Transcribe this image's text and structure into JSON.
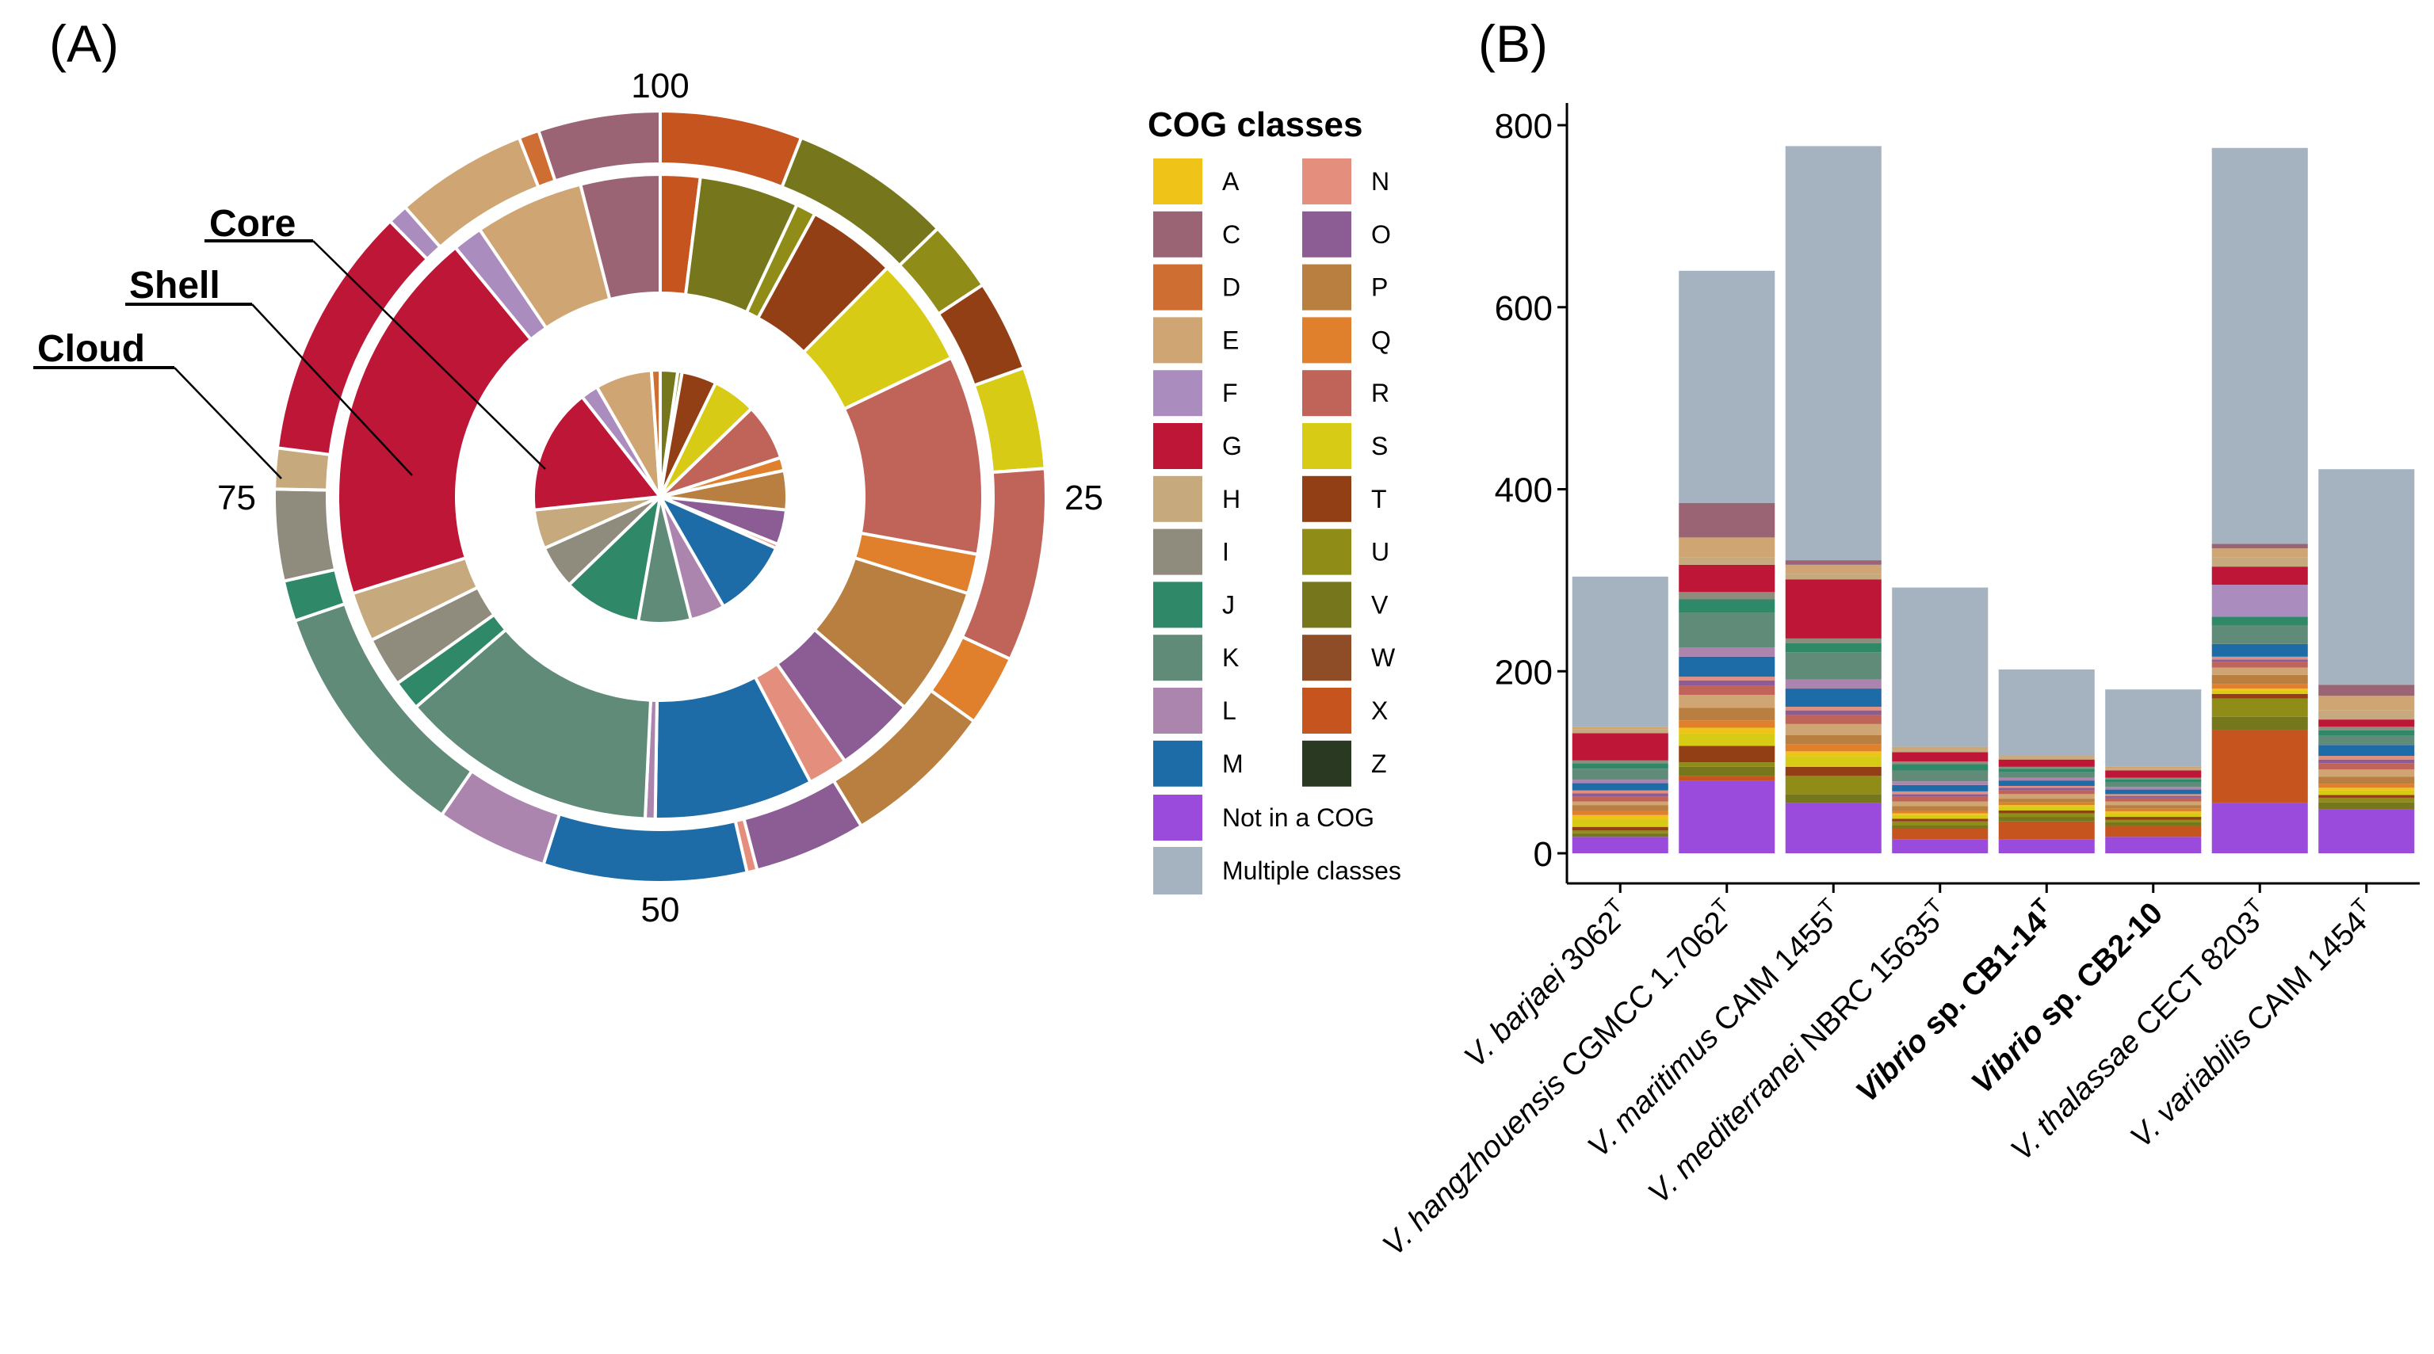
{
  "colors": {
    "A": "#F0C319",
    "C": "#9A6474",
    "D": "#CE6E33",
    "E": "#D0A574",
    "F": "#AB8CBF",
    "G": "#BE1637",
    "H": "#C6A97C",
    "I": "#8F8B7D",
    "J": "#2F8867",
    "K": "#5F8B78",
    "L": "#AC85AE",
    "M": "#1E6CA7",
    "N": "#E48F7E",
    "O": "#8B5D94",
    "P": "#B97F40",
    "Q": "#E07F2C",
    "R": "#C0645A",
    "S": "#D8CB16",
    "T": "#933F16",
    "U": "#8F8C18",
    "V": "#76761C",
    "W": "#8E4D26",
    "X": "#C5541F",
    "Z": "#2A3A22",
    "NotCOG": "#9A4BDB",
    "Multiple": "#A5B2BF"
  },
  "chart_data": [
    {
      "type": "pie",
      "panel_label": "(A)",
      "variant": "nested donut (percent of genes per pangenome fraction)",
      "tick_labels": [
        {
          "value": "100",
          "angle": 0
        },
        {
          "value": "25",
          "angle": 90
        },
        {
          "value": "50",
          "angle": 180
        },
        {
          "value": "75",
          "angle": 270
        }
      ],
      "ring_labels": {
        "core": "Core",
        "shell": "Shell",
        "cloud": "Cloud"
      },
      "rings": {
        "outer": [
          [
            "X",
            7
          ],
          [
            "V",
            8
          ],
          [
            "U",
            3.5
          ],
          [
            "T",
            4.5
          ],
          [
            "S",
            5
          ],
          [
            "R",
            9.5
          ],
          [
            "Q",
            3.5
          ],
          [
            "P",
            7.5
          ],
          [
            "O",
            5.5
          ],
          [
            "N",
            0.5
          ],
          [
            "M",
            10
          ],
          [
            "L",
            5.5
          ],
          [
            "K",
            12
          ],
          [
            "J",
            2
          ],
          [
            "I",
            4.5
          ],
          [
            "H",
            2
          ],
          [
            "G",
            12.5
          ],
          [
            "F",
            1
          ],
          [
            "E",
            6.5
          ],
          [
            "D",
            1
          ],
          [
            "C",
            6
          ]
        ],
        "middle": [
          [
            "X",
            2
          ],
          [
            "V",
            5
          ],
          [
            "U",
            1
          ],
          [
            "T",
            4.5
          ],
          [
            "S",
            5.5
          ],
          [
            "R",
            10
          ],
          [
            "Q",
            2
          ],
          [
            "P",
            6.5
          ],
          [
            "O",
            4
          ],
          [
            "N",
            2
          ],
          [
            "M",
            8
          ],
          [
            "L",
            0.5
          ],
          [
            "K",
            13
          ],
          [
            "J",
            1.5
          ],
          [
            "I",
            2.5
          ],
          [
            "H",
            2.5
          ],
          [
            "G",
            19
          ],
          [
            "F",
            1.5
          ],
          [
            "E",
            5.5
          ],
          [
            "C",
            4
          ]
        ],
        "inner": [
          [
            "V",
            2
          ],
          [
            "U",
            0.5
          ],
          [
            "T",
            4
          ],
          [
            "S",
            5
          ],
          [
            "R",
            6.5
          ],
          [
            "Q",
            1.5
          ],
          [
            "P",
            4.5
          ],
          [
            "O",
            4
          ],
          [
            "N",
            0.5
          ],
          [
            "M",
            9
          ],
          [
            "L",
            4
          ],
          [
            "K",
            6
          ],
          [
            "J",
            9
          ],
          [
            "I",
            5
          ],
          [
            "H",
            4.5
          ],
          [
            "G",
            14.5
          ],
          [
            "F",
            2
          ],
          [
            "E",
            6.5
          ],
          [
            "D",
            1
          ]
        ]
      }
    },
    {
      "type": "bar",
      "stacked": true,
      "panel_label": "(B)",
      "ylim": [
        0,
        800
      ],
      "yticks": [
        0,
        200,
        400,
        600,
        800
      ],
      "categories": [
        {
          "label": "V. barjaei 3062",
          "sup": "T"
        },
        {
          "label": "V. hangzhouensis CGMCC 1.7062",
          "sup": "T"
        },
        {
          "label": "V. maritimus CAIM 1455",
          "sup": "T"
        },
        {
          "label": "V. mediterranei NBRC 15635",
          "sup": "T"
        },
        {
          "label": "Vibrio sp. CB1-14",
          "sup": "T"
        },
        {
          "label": "Vibrio sp. CB2-10",
          "sup": ""
        },
        {
          "label": "V. thalassae CECT 8203",
          "sup": "T"
        },
        {
          "label": "V. variabilis CAIM 1454",
          "sup": "T"
        }
      ],
      "series": [
        {
          "name": "Not in a COG",
          "values": [
            18,
            80,
            55,
            15,
            15,
            18,
            55,
            48
          ]
        },
        {
          "name": "X",
          "values": [
            0,
            5,
            0,
            12,
            20,
            12,
            80,
            0
          ]
        },
        {
          "name": "V",
          "values": [
            4,
            10,
            10,
            4,
            5,
            4,
            15,
            8
          ]
        },
        {
          "name": "U",
          "values": [
            3,
            5,
            20,
            4,
            4,
            3,
            20,
            5
          ]
        },
        {
          "name": "T",
          "values": [
            4,
            18,
            10,
            3,
            3,
            3,
            5,
            3
          ]
        },
        {
          "name": "S",
          "values": [
            8,
            14,
            12,
            4,
            4,
            4,
            4,
            5
          ]
        },
        {
          "name": "A",
          "values": [
            5,
            6,
            5,
            2,
            2,
            2,
            2,
            3
          ]
        },
        {
          "name": "Q",
          "values": [
            5,
            8,
            8,
            3,
            3,
            3,
            5,
            4
          ]
        },
        {
          "name": "P",
          "values": [
            6,
            14,
            10,
            5,
            4,
            4,
            10,
            8
          ]
        },
        {
          "name": "E",
          "values": [
            4,
            14,
            12,
            5,
            5,
            4,
            8,
            8
          ]
        },
        {
          "name": "R",
          "values": [
            5,
            10,
            10,
            5,
            4,
            4,
            6,
            7
          ]
        },
        {
          "name": "O",
          "values": [
            4,
            6,
            5,
            3,
            3,
            2,
            3,
            4
          ]
        },
        {
          "name": "N",
          "values": [
            3,
            4,
            4,
            3,
            2,
            2,
            3,
            4
          ]
        },
        {
          "name": "M",
          "values": [
            8,
            22,
            20,
            7,
            6,
            5,
            14,
            12
          ]
        },
        {
          "name": "L",
          "values": [
            4,
            10,
            10,
            4,
            3,
            3,
            0,
            0
          ]
        },
        {
          "name": "K",
          "values": [
            12,
            38,
            30,
            12,
            6,
            5,
            20,
            10
          ]
        },
        {
          "name": "J",
          "values": [
            6,
            15,
            10,
            7,
            4,
            3,
            10,
            6
          ]
        },
        {
          "name": "I",
          "values": [
            3,
            8,
            5,
            3,
            2,
            2,
            0,
            4
          ]
        },
        {
          "name": "F",
          "values": [
            0,
            0,
            0,
            0,
            0,
            0,
            35,
            0
          ]
        },
        {
          "name": "G",
          "values": [
            30,
            30,
            65,
            10,
            8,
            8,
            20,
            8
          ]
        },
        {
          "name": "H",
          "values": [
            4,
            8,
            6,
            3,
            2,
            2,
            10,
            10
          ]
        },
        {
          "name": "E2",
          "color_key": "E",
          "values": [
            3,
            22,
            10,
            3,
            2,
            2,
            10,
            16
          ]
        },
        {
          "name": "C",
          "values": [
            0,
            38,
            5,
            0,
            0,
            0,
            5,
            12
          ]
        },
        {
          "name": "Multiple classes",
          "values": [
            165,
            255,
            455,
            175,
            95,
            85,
            435,
            237
          ]
        }
      ]
    }
  ],
  "legend": {
    "title": "COG classes",
    "col1": [
      "A",
      "C",
      "D",
      "E",
      "F",
      "G",
      "H",
      "I",
      "J",
      "K",
      "L",
      "M"
    ],
    "col2": [
      "N",
      "O",
      "P",
      "Q",
      "R",
      "S",
      "T",
      "U",
      "V",
      "W",
      "X",
      "Z"
    ],
    "extra": [
      {
        "key": "NotCOG",
        "label": "Not in a COG"
      },
      {
        "key": "Multiple",
        "label": "Multiple classes"
      }
    ]
  }
}
